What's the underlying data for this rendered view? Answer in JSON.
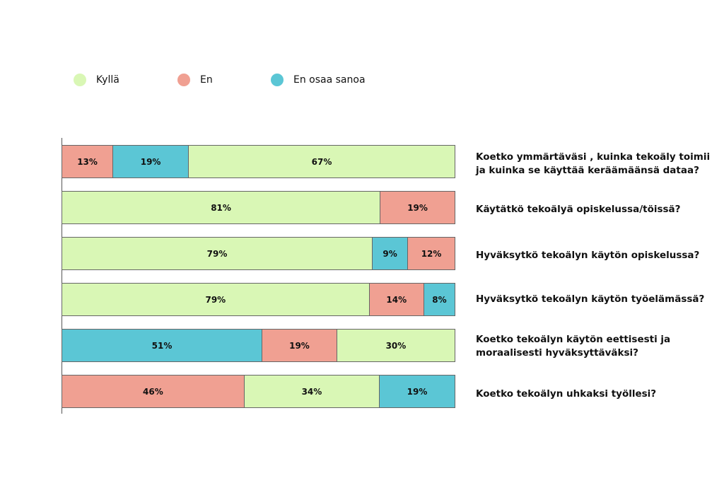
{
  "chart_data": {
    "type": "bar",
    "orientation": "horizontal",
    "stacked": true,
    "legend_position": "top-left",
    "grid": false,
    "legend": [
      {
        "key": "kylla",
        "name": "Kyllä",
        "color": "#d9f7b5"
      },
      {
        "key": "en",
        "name": "En",
        "color": "#f0a092"
      },
      {
        "key": "eos",
        "name": "En osaa sanoa",
        "color": "#5bc6d5"
      }
    ],
    "bars": [
      {
        "question": "Koetko ymmärtäväsi , kuinka tekoäly toimii ja kuinka se käyttää keräämäänsä dataa?",
        "segments": [
          {
            "key": "en",
            "value": 13,
            "label": "13%"
          },
          {
            "key": "eos",
            "value": 19,
            "label": "19%"
          },
          {
            "key": "kylla",
            "value": 67,
            "label": "67%"
          }
        ]
      },
      {
        "question": "Käytätkö tekoälyä opiskelussa/töissä?",
        "segments": [
          {
            "key": "kylla",
            "value": 81,
            "label": "81%"
          },
          {
            "key": "en",
            "value": 19,
            "label": "19%"
          }
        ]
      },
      {
        "question": "Hyväksytkö tekoälyn käytön opiskelussa?",
        "segments": [
          {
            "key": "kylla",
            "value": 79,
            "label": "79%"
          },
          {
            "key": "eos",
            "value": 9,
            "label": "9%"
          },
          {
            "key": "en",
            "value": 12,
            "label": "12%"
          }
        ]
      },
      {
        "question": "Hyväksytkö tekoälyn käytön työelämässä?",
        "segments": [
          {
            "key": "kylla",
            "value": 79,
            "label": "79%"
          },
          {
            "key": "en",
            "value": 14,
            "label": "14%"
          },
          {
            "key": "eos",
            "value": 8,
            "label": "8%"
          }
        ]
      },
      {
        "question": "Koetko tekoälyn käytön eettisesti ja moraalisesti hyväksyttäväksi?",
        "segments": [
          {
            "key": "eos",
            "value": 51,
            "label": "51%"
          },
          {
            "key": "en",
            "value": 19,
            "label": "19%"
          },
          {
            "key": "kylla",
            "value": 30,
            "label": "30%"
          }
        ]
      },
      {
        "question": "Koetko tekoälyn uhkaksi työllesi?",
        "segments": [
          {
            "key": "en",
            "value": 46,
            "label": "46%"
          },
          {
            "key": "kylla",
            "value": 34,
            "label": "34%"
          },
          {
            "key": "eos",
            "value": 19,
            "label": "19%"
          }
        ]
      }
    ]
  }
}
